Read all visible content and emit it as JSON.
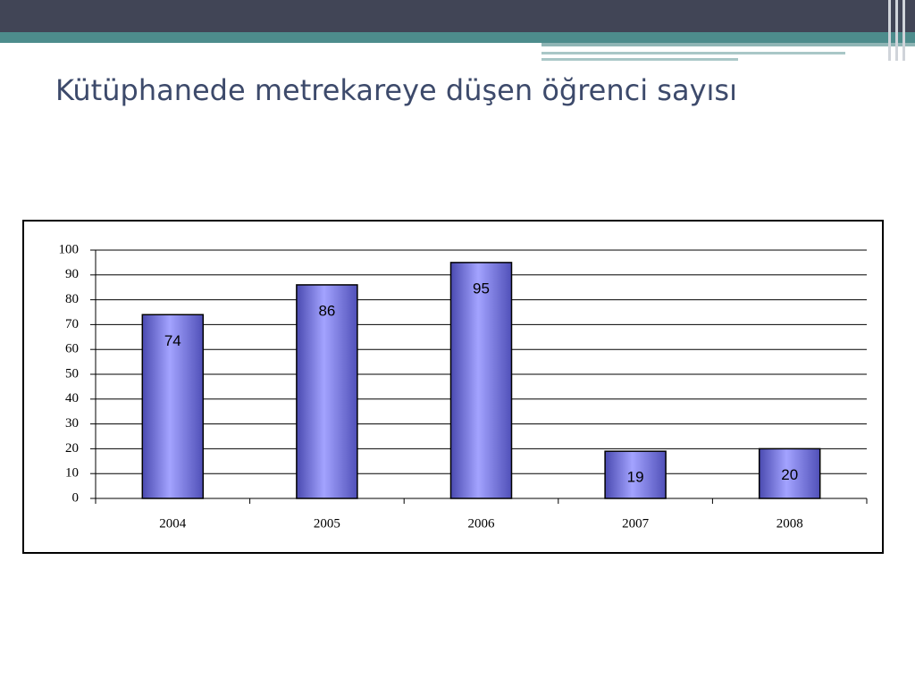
{
  "chart_data": {
    "type": "bar",
    "title": "Kütüphanede metrekareye düşen öğrenci sayısı",
    "categories": [
      "2004",
      "2005",
      "2006",
      "2007",
      "2008"
    ],
    "values": [
      74,
      86,
      95,
      19,
      20
    ],
    "color": "#9999ff",
    "ylim": [
      0,
      100
    ],
    "yticks": [
      0,
      10,
      20,
      30,
      40,
      50,
      60,
      70,
      80,
      90,
      100
    ],
    "grid": true
  }
}
